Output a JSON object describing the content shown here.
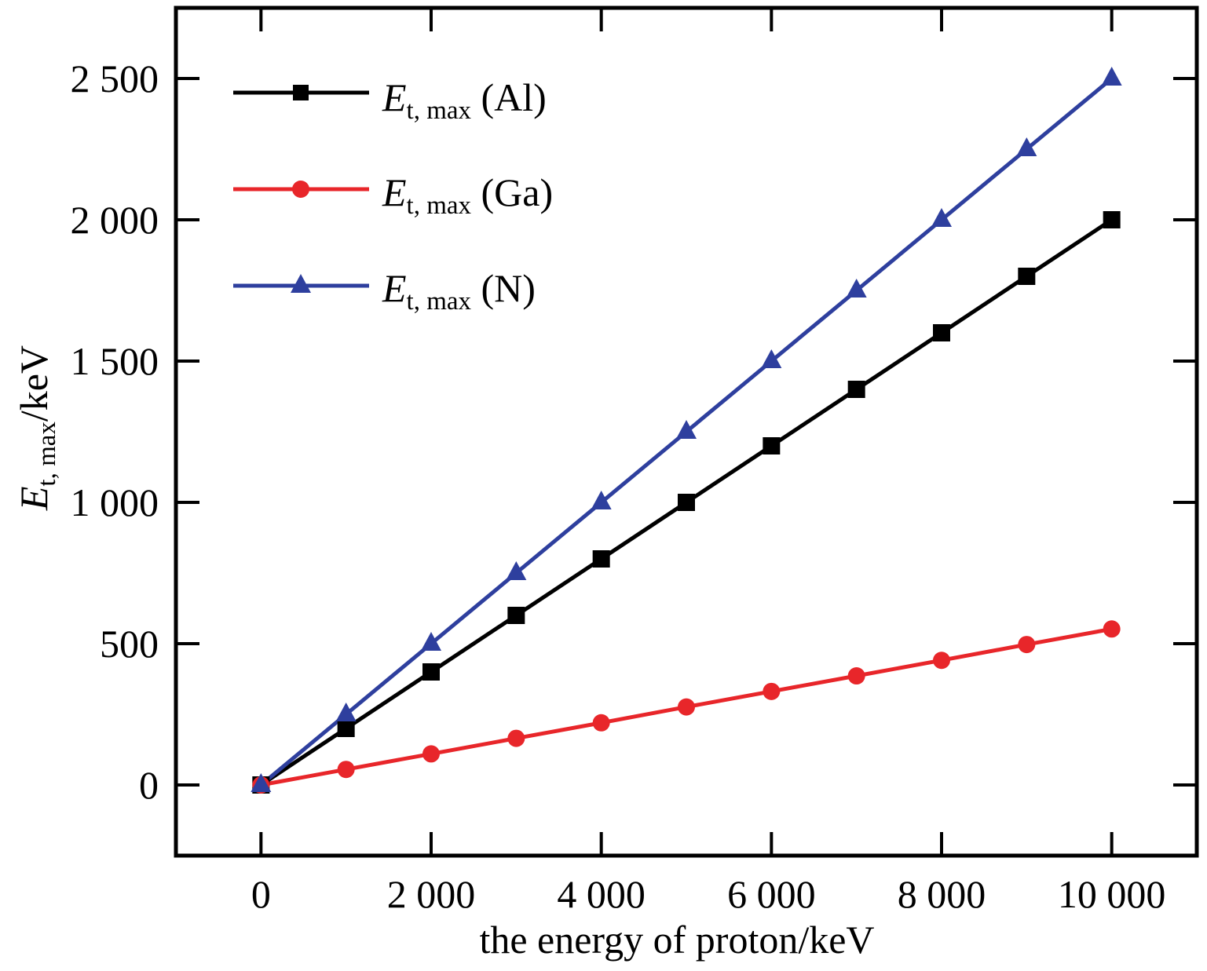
{
  "chart_data": {
    "type": "line",
    "title": "",
    "xlabel": "the energy of proton/keV",
    "ylabel": {
      "symbol": "E",
      "subscript": "t, max",
      "unit": "/keV"
    },
    "xlim": [
      -1000,
      11000
    ],
    "ylim": [
      -250,
      2750
    ],
    "x_ticks": [
      0,
      2000,
      4000,
      6000,
      8000,
      10000
    ],
    "x_tick_labels": [
      "0",
      "2 000",
      "4 000",
      "6 000",
      "8 000",
      "10 000"
    ],
    "y_ticks": [
      0,
      500,
      1000,
      1500,
      2000,
      2500
    ],
    "y_tick_labels": [
      "0",
      "500",
      "1 000",
      "1 500",
      "2 000",
      "2 500"
    ],
    "grid": false,
    "legend_position": "top-left",
    "x": [
      0,
      1000,
      2000,
      3000,
      4000,
      5000,
      6000,
      7000,
      8000,
      9000,
      10000
    ],
    "series": [
      {
        "label_symbol": "E",
        "label_subscript": "t, max",
        "label_suffix": " (Al)",
        "color": "#000000",
        "marker": "square",
        "values": [
          0,
          200,
          400,
          600,
          800,
          1000,
          1200,
          1400,
          1600,
          1800,
          2000
        ]
      },
      {
        "label_symbol": "E",
        "label_subscript": "t, max",
        "label_suffix": " (Ga)",
        "color": "#e8262a",
        "marker": "circle",
        "values": [
          0,
          55,
          110,
          165,
          220,
          276,
          331,
          386,
          441,
          497,
          552
        ]
      },
      {
        "label_symbol": "E",
        "label_subscript": "t, max",
        "label_suffix": " (N)",
        "color": "#2e3f9e",
        "marker": "triangle",
        "values": [
          0,
          250,
          500,
          750,
          1000,
          1250,
          1500,
          1750,
          2000,
          2250,
          2500
        ]
      }
    ]
  }
}
